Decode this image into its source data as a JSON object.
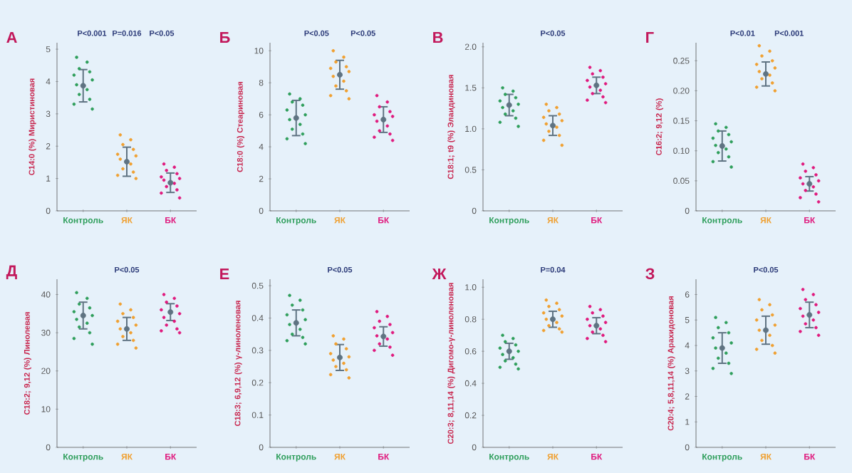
{
  "chart_data": [
    {
      "type": "scatter",
      "title": "А",
      "ylabel": "C14:0 (%) Миристиновая",
      "categories": [
        "Контроль",
        "ЯК",
        "БК"
      ],
      "ylim": [
        0,
        5.2
      ],
      "yticks": [
        0,
        1,
        2,
        3,
        4,
        5
      ],
      "annotations": [
        "P<0.001",
        "P=0.016",
        "P<0.05"
      ],
      "series": [
        {
          "color": "#2e9e5b",
          "marker": "circle",
          "x": [
            "Контроль",
            "Контроль",
            "Контроль",
            "Контроль",
            "Контроль",
            "Контроль",
            "Контроль",
            "Контроль",
            "Контроль",
            "Контроль",
            "Контроль",
            "Контроль"
          ],
          "values": [
            4.75,
            4.6,
            4.4,
            4.3,
            4.2,
            4.05,
            3.9,
            3.75,
            3.6,
            3.45,
            3.3,
            3.15
          ]
        },
        {
          "color": "#f0a030",
          "marker": "circle",
          "x": [
            "ЯК",
            "ЯК",
            "ЯК",
            "ЯК",
            "ЯК",
            "ЯК",
            "ЯК",
            "ЯК",
            "ЯК",
            "ЯК",
            "ЯК",
            "ЯК"
          ],
          "values": [
            2.35,
            2.2,
            2.05,
            1.9,
            1.75,
            1.7,
            1.6,
            1.45,
            1.3,
            1.2,
            1.1,
            1.0
          ]
        },
        {
          "color": "#e0197d",
          "marker": "circle",
          "x": [
            "БК",
            "БК",
            "БК",
            "БК",
            "БК",
            "БК",
            "БК",
            "БК",
            "БК",
            "БК",
            "БК",
            "БК"
          ],
          "values": [
            1.45,
            1.35,
            1.25,
            1.15,
            1.05,
            1.0,
            0.95,
            0.85,
            0.75,
            0.65,
            0.55,
            0.4
          ]
        },
        {
          "color": "#5f7382",
          "marker": "circle",
          "values": [
            3.87,
            1.52,
            0.87
          ],
          "errors": [
            0.5,
            0.45,
            0.3
          ]
        }
      ]
    },
    {
      "type": "scatter",
      "title": "Б",
      "ylabel": "C18:0 (%) Стеариновая",
      "categories": [
        "Контроль",
        "ЯК",
        "БК"
      ],
      "ylim": [
        0,
        10.5
      ],
      "yticks": [
        0,
        2,
        4,
        6,
        8,
        10
      ],
      "annotations": [
        "P<0.05",
        "P<0.05"
      ],
      "series": [
        {
          "color": "#2e9e5b",
          "marker": "circle",
          "x": [
            "Контроль",
            "Контроль",
            "Контроль",
            "Контроль",
            "Контроль",
            "Контроль",
            "Контроль",
            "Контроль",
            "Контроль",
            "Контроль",
            "Контроль",
            "Контроль"
          ],
          "values": [
            7.3,
            7.0,
            6.8,
            6.6,
            6.3,
            6.0,
            5.7,
            5.4,
            5.1,
            4.8,
            4.5,
            4.2
          ]
        },
        {
          "color": "#f0a030",
          "marker": "circle",
          "x": [
            "ЯК",
            "ЯК",
            "ЯК",
            "ЯК",
            "ЯК",
            "ЯК",
            "ЯК",
            "ЯК",
            "ЯК",
            "ЯК",
            "ЯК",
            "ЯК"
          ],
          "values": [
            10.0,
            9.6,
            9.3,
            9.0,
            8.9,
            8.7,
            8.4,
            8.1,
            7.8,
            7.5,
            7.2,
            7.0
          ]
        },
        {
          "color": "#e0197d",
          "marker": "circle",
          "x": [
            "БК",
            "БК",
            "БК",
            "БК",
            "БК",
            "БК",
            "БК",
            "БК",
            "БК",
            "БК",
            "БК",
            "БК"
          ],
          "values": [
            7.2,
            6.8,
            6.5,
            6.2,
            6.0,
            5.9,
            5.6,
            5.3,
            5.0,
            4.8,
            4.6,
            4.4
          ]
        },
        {
          "color": "#5f7382",
          "marker": "circle",
          "values": [
            5.8,
            8.5,
            5.7
          ],
          "errors": [
            1.1,
            0.9,
            0.8
          ]
        }
      ]
    },
    {
      "type": "scatter",
      "title": "В",
      "ylabel": "C18:1; t9 (%) Элаидиновая",
      "categories": [
        "Контроль",
        "ЯК",
        "БК"
      ],
      "ylim": [
        0,
        2.05
      ],
      "yticks": [
        0,
        {
          "value": 0.5,
          "label": "0.5"
        },
        {
          "value": 1,
          "label": "1.0"
        },
        {
          "value": 1.5,
          "label": "1.5"
        },
        {
          "value": 2,
          "label": "2.0"
        }
      ],
      "annotations": [
        "P<0.05"
      ],
      "series": [
        {
          "color": "#2e9e5b",
          "marker": "circle",
          "x": [
            "Контроль",
            "Контроль",
            "Контроль",
            "Контроль",
            "Контроль",
            "Контроль",
            "Контроль",
            "Контроль",
            "Контроль",
            "Контроль",
            "Контроль",
            "Контроль"
          ],
          "values": [
            1.5,
            1.46,
            1.42,
            1.38,
            1.34,
            1.3,
            1.26,
            1.22,
            1.18,
            1.13,
            1.08,
            1.03
          ]
        },
        {
          "color": "#f0a030",
          "marker": "circle",
          "x": [
            "ЯК",
            "ЯК",
            "ЯК",
            "ЯК",
            "ЯК",
            "ЯК",
            "ЯК",
            "ЯК",
            "ЯК",
            "ЯК",
            "ЯК",
            "ЯК"
          ],
          "values": [
            1.3,
            1.26,
            1.22,
            1.18,
            1.14,
            1.1,
            1.06,
            1.02,
            0.97,
            0.92,
            0.86,
            0.8
          ]
        },
        {
          "color": "#e0197d",
          "marker": "circle",
          "x": [
            "БК",
            "БК",
            "БК",
            "БК",
            "БК",
            "БК",
            "БК",
            "БК",
            "БК",
            "БК",
            "БК",
            "БК"
          ],
          "values": [
            1.75,
            1.71,
            1.67,
            1.63,
            1.59,
            1.55,
            1.51,
            1.47,
            1.43,
            1.39,
            1.35,
            1.32
          ]
        },
        {
          "color": "#5f7382",
          "marker": "circle",
          "values": [
            1.29,
            1.04,
            1.53
          ],
          "errors": [
            0.13,
            0.12,
            0.1
          ]
        }
      ]
    },
    {
      "type": "scatter",
      "title": "Г",
      "ylabel": "C16:2; 9,12 (%)",
      "categories": [
        "Контроль",
        "ЯК",
        "БК"
      ],
      "ylim": [
        0,
        0.28
      ],
      "yticks": [
        0,
        {
          "value": 0.05,
          "label": "0.05"
        },
        {
          "value": 0.1,
          "label": "0.10"
        },
        {
          "value": 0.15,
          "label": "0.15"
        },
        {
          "value": 0.2,
          "label": "0.20"
        },
        {
          "value": 0.25,
          "label": "0.25"
        }
      ],
      "annotations": [
        "P<0.01",
        "P<0.001"
      ],
      "series": [
        {
          "color": "#2e9e5b",
          "marker": "circle",
          "x": [
            "Контроль",
            "Контроль",
            "Контроль",
            "Контроль",
            "Контроль",
            "Контроль",
            "Контроль",
            "Контроль",
            "Контроль",
            "Контроль",
            "Контроль",
            "Контроль"
          ],
          "values": [
            0.145,
            0.139,
            0.133,
            0.127,
            0.121,
            0.115,
            0.109,
            0.103,
            0.097,
            0.09,
            0.082,
            0.073
          ]
        },
        {
          "color": "#f0a030",
          "marker": "circle",
          "x": [
            "ЯК",
            "ЯК",
            "ЯК",
            "ЯК",
            "ЯК",
            "ЯК",
            "ЯК",
            "ЯК",
            "ЯК",
            "ЯК",
            "ЯК",
            "ЯК"
          ],
          "values": [
            0.275,
            0.266,
            0.258,
            0.25,
            0.244,
            0.238,
            0.232,
            0.226,
            0.22,
            0.213,
            0.206,
            0.2
          ]
        },
        {
          "color": "#e0197d",
          "marker": "circle",
          "x": [
            "БК",
            "БК",
            "БК",
            "БК",
            "БК",
            "БК",
            "БК",
            "БК",
            "БК",
            "БК",
            "БК",
            "БК"
          ],
          "values": [
            0.078,
            0.072,
            0.066,
            0.06,
            0.055,
            0.05,
            0.045,
            0.04,
            0.034,
            0.028,
            0.022,
            0.015
          ]
        },
        {
          "color": "#5f7382",
          "marker": "circle",
          "values": [
            0.108,
            0.228,
            0.045
          ],
          "errors": [
            0.025,
            0.02,
            0.012
          ]
        }
      ]
    },
    {
      "type": "scatter",
      "title": "Д",
      "ylabel": "C18:2; 9,12 (%) Линолевая",
      "categories": [
        "Контроль",
        "ЯК",
        "БК"
      ],
      "ylim": [
        0,
        44
      ],
      "yticks": [
        0,
        10,
        20,
        30,
        40
      ],
      "annotations": [
        "P<0.05"
      ],
      "series": [
        {
          "color": "#2e9e5b",
          "marker": "circle",
          "x": [
            "Контроль",
            "Контроль",
            "Контроль",
            "Контроль",
            "Контроль",
            "Контроль",
            "Контроль",
            "Контроль",
            "Контроль",
            "Контроль",
            "Контроль",
            "Контроль"
          ],
          "values": [
            40.5,
            39,
            37.5,
            36.5,
            35.5,
            34.5,
            33.5,
            32.5,
            31.5,
            30,
            28.5,
            27
          ]
        },
        {
          "color": "#f0a030",
          "marker": "circle",
          "x": [
            "ЯК",
            "ЯК",
            "ЯК",
            "ЯК",
            "ЯК",
            "ЯК",
            "ЯК",
            "ЯК",
            "ЯК",
            "ЯК",
            "ЯК",
            "ЯК"
          ],
          "values": [
            37.5,
            36,
            35,
            34,
            33,
            32,
            31,
            30,
            29,
            28,
            27,
            26
          ]
        },
        {
          "color": "#e0197d",
          "marker": "circle",
          "x": [
            "БК",
            "БК",
            "БК",
            "БК",
            "БК",
            "БК",
            "БК",
            "БК",
            "БК",
            "БК",
            "БК",
            "БК"
          ],
          "values": [
            40,
            39,
            38,
            37,
            36,
            35,
            34,
            33,
            32,
            31,
            30.5,
            30
          ]
        },
        {
          "color": "#5f7382",
          "marker": "circle",
          "values": [
            34.5,
            31,
            35.4
          ],
          "errors": [
            3.5,
            3,
            2.2
          ]
        }
      ]
    },
    {
      "type": "scatter",
      "title": "Е",
      "ylabel": "C18:3; 6,9,12 (%) γ-линоленовая",
      "categories": [
        "Контроль",
        "ЯК",
        "БК"
      ],
      "ylim": [
        0,
        0.52
      ],
      "yticks": [
        0,
        0.1,
        0.2,
        0.3,
        0.4,
        0.5
      ],
      "annotations": [
        "P<0.05"
      ],
      "series": [
        {
          "color": "#2e9e5b",
          "marker": "circle",
          "x": [
            "Контроль",
            "Контроль",
            "Контроль",
            "Контроль",
            "Контроль",
            "Контроль",
            "Контроль",
            "Контроль",
            "Контроль",
            "Контроль",
            "Контроль",
            "Контроль"
          ],
          "values": [
            0.47,
            0.455,
            0.44,
            0.425,
            0.41,
            0.395,
            0.38,
            0.365,
            0.35,
            0.34,
            0.33,
            0.32
          ]
        },
        {
          "color": "#f0a030",
          "marker": "circle",
          "x": [
            "ЯК",
            "ЯК",
            "ЯК",
            "ЯК",
            "ЯК",
            "ЯК",
            "ЯК",
            "ЯК",
            "ЯК",
            "ЯК",
            "ЯК",
            "ЯК"
          ],
          "values": [
            0.345,
            0.335,
            0.32,
            0.305,
            0.29,
            0.28,
            0.27,
            0.26,
            0.25,
            0.24,
            0.225,
            0.215
          ]
        },
        {
          "color": "#e0197d",
          "marker": "circle",
          "x": [
            "БК",
            "БК",
            "БК",
            "БК",
            "БК",
            "БК",
            "БК",
            "БК",
            "БК",
            "БК",
            "БК",
            "БК"
          ],
          "values": [
            0.42,
            0.405,
            0.39,
            0.38,
            0.37,
            0.355,
            0.345,
            0.335,
            0.32,
            0.31,
            0.3,
            0.285
          ]
        },
        {
          "color": "#5f7382",
          "marker": "circle",
          "values": [
            0.385,
            0.278,
            0.343
          ],
          "errors": [
            0.04,
            0.04,
            0.03
          ]
        }
      ]
    },
    {
      "type": "scatter",
      "title": "Ж",
      "ylabel": "C20:3; 8,11,14 (%) Дигомо-γ-линоленовая",
      "categories": [
        "Контроль",
        "ЯК",
        "БК"
      ],
      "ylim": [
        0,
        1.05
      ],
      "yticks": [
        0,
        0.2,
        0.4,
        0.6,
        0.8,
        {
          "value": 1,
          "label": "1.0"
        }
      ],
      "annotations": [
        "P=0.04"
      ],
      "series": [
        {
          "color": "#2e9e5b",
          "marker": "circle",
          "x": [
            "Контроль",
            "Контроль",
            "Контроль",
            "Контроль",
            "Контроль",
            "Контроль",
            "Контроль",
            "Контроль",
            "Контроль",
            "Контроль",
            "Контроль",
            "Контроль"
          ],
          "values": [
            0.7,
            0.68,
            0.66,
            0.64,
            0.62,
            0.6,
            0.58,
            0.56,
            0.54,
            0.52,
            0.5,
            0.49
          ]
        },
        {
          "color": "#f0a030",
          "marker": "circle",
          "x": [
            "ЯК",
            "ЯК",
            "ЯК",
            "ЯК",
            "ЯК",
            "ЯК",
            "ЯК",
            "ЯК",
            "ЯК",
            "ЯК",
            "ЯК",
            "ЯК"
          ],
          "values": [
            0.92,
            0.9,
            0.88,
            0.86,
            0.84,
            0.82,
            0.8,
            0.78,
            0.76,
            0.74,
            0.73,
            0.72
          ]
        },
        {
          "color": "#e0197d",
          "marker": "circle",
          "x": [
            "БК",
            "БК",
            "БК",
            "БК",
            "БК",
            "БК",
            "БК",
            "БК",
            "БК",
            "БК",
            "БК",
            "БК"
          ],
          "values": [
            0.88,
            0.86,
            0.84,
            0.82,
            0.8,
            0.78,
            0.76,
            0.74,
            0.72,
            0.7,
            0.68,
            0.66
          ]
        },
        {
          "color": "#5f7382",
          "marker": "circle",
          "values": [
            0.6,
            0.8,
            0.76
          ],
          "errors": [
            0.05,
            0.05,
            0.05
          ]
        }
      ]
    },
    {
      "type": "scatter",
      "title": "З",
      "ylabel": "C20:4; 5,8,11,14 (%) Арахидоновая",
      "categories": [
        "Контроль",
        "ЯК",
        "БК"
      ],
      "ylim": [
        0,
        6.6
      ],
      "yticks": [
        0,
        1,
        2,
        3,
        4,
        5,
        6
      ],
      "annotations": [
        "P<0.05"
      ],
      "series": [
        {
          "color": "#2e9e5b",
          "marker": "circle",
          "x": [
            "Контроль",
            "Контроль",
            "Контроль",
            "Контроль",
            "Контроль",
            "Контроль",
            "Контроль",
            "Контроль",
            "Контроль",
            "Контроль",
            "Контроль",
            "Контроль"
          ],
          "values": [
            5.1,
            4.9,
            4.7,
            4.5,
            4.3,
            4.1,
            3.9,
            3.7,
            3.5,
            3.3,
            3.1,
            2.9
          ]
        },
        {
          "color": "#f0a030",
          "marker": "circle",
          "x": [
            "ЯК",
            "ЯК",
            "ЯК",
            "ЯК",
            "ЯК",
            "ЯК",
            "ЯК",
            "ЯК",
            "ЯК",
            "ЯК",
            "ЯК",
            "ЯК"
          ],
          "values": [
            5.8,
            5.6,
            5.4,
            5.2,
            5.0,
            4.8,
            4.6,
            4.4,
            4.2,
            4.0,
            3.85,
            3.7
          ]
        },
        {
          "color": "#e0197d",
          "marker": "circle",
          "x": [
            "БК",
            "БК",
            "БК",
            "БК",
            "БК",
            "БК",
            "БК",
            "БК",
            "БК",
            "БК",
            "БК",
            "БК"
          ],
          "values": [
            6.2,
            6.0,
            5.8,
            5.6,
            5.45,
            5.3,
            5.15,
            5.0,
            4.85,
            4.7,
            4.55,
            4.4
          ]
        },
        {
          "color": "#5f7382",
          "marker": "circle",
          "values": [
            3.9,
            4.6,
            5.2
          ],
          "errors": [
            0.6,
            0.55,
            0.5
          ]
        }
      ]
    }
  ]
}
